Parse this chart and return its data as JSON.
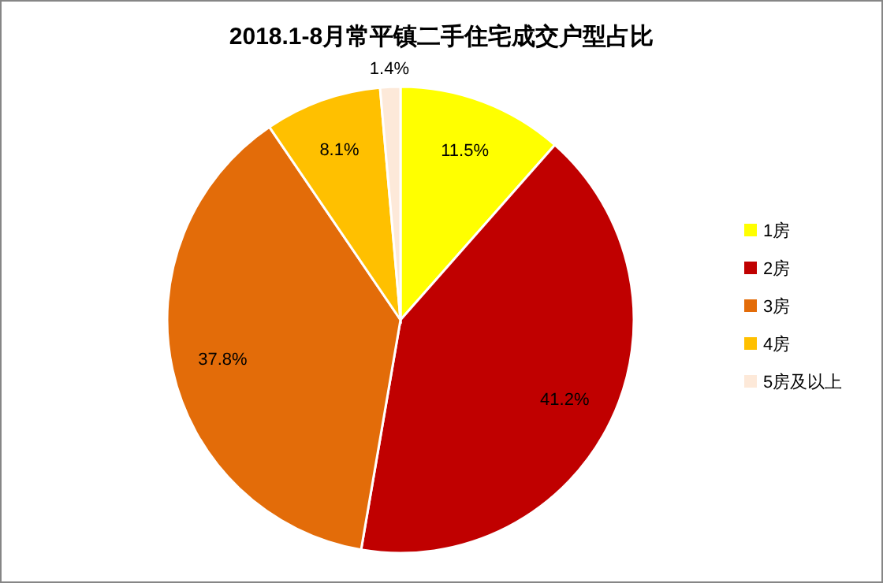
{
  "chart_data": {
    "type": "pie",
    "title": "2018.1-8月常平镇二手住宅成交户型占比",
    "categories": [
      "1房",
      "2房",
      "3房",
      "4房",
      "5房及以上"
    ],
    "values": [
      11.5,
      41.2,
      37.8,
      8.1,
      1.4
    ],
    "colors": [
      "#ffff00",
      "#c00000",
      "#e36c09",
      "#ffc000",
      "#fde9d9"
    ],
    "value_labels": [
      "11.5%",
      "41.2%",
      "37.8%",
      "8.1%",
      "1.4%"
    ],
    "legend": "right"
  }
}
